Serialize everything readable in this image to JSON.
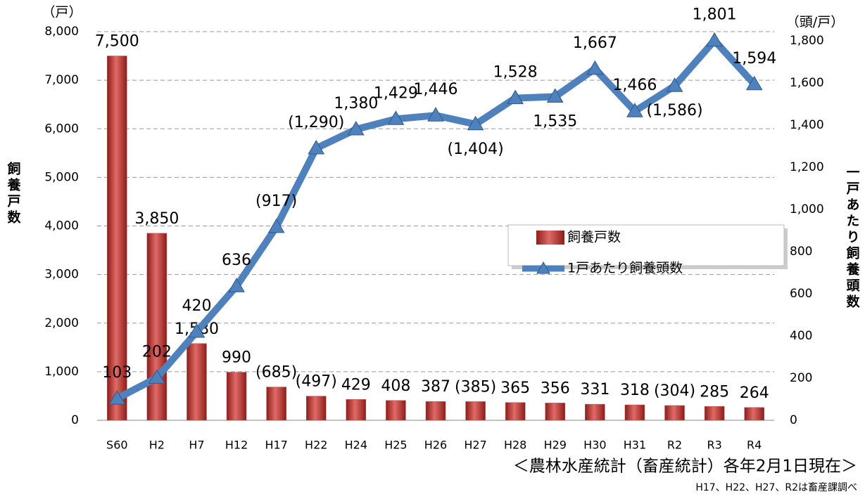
{
  "chart_data": {
    "type": "bar",
    "categories": [
      "S60",
      "H2",
      "H7",
      "H12",
      "H17",
      "H22",
      "H24",
      "H25",
      "H26",
      "H27",
      "H28",
      "H29",
      "H30",
      "H31",
      "R2",
      "R3",
      "R4"
    ],
    "series": [
      {
        "name": "飼養戸数",
        "type": "bar",
        "color": "#c0504d",
        "values": [
          7500,
          3850,
          1580,
          990,
          685,
          497,
          429,
          408,
          387,
          385,
          365,
          356,
          331,
          318,
          304,
          285,
          264
        ],
        "value_labels": [
          "7,500",
          "3,850",
          "1,580",
          "990",
          "(685)",
          "(497)",
          "429",
          "408",
          "387",
          "(385)",
          "365",
          "356",
          "331",
          "318",
          "(304)",
          "285",
          "264"
        ]
      },
      {
        "name": "1戸あたり飼養頭数",
        "type": "line",
        "axis": "y2",
        "color": "#4f81bd",
        "values": [
          103,
          202,
          420,
          636,
          917,
          1290,
          1380,
          1429,
          1446,
          1404,
          1528,
          1535,
          1667,
          1466,
          1586,
          1801,
          1594
        ],
        "value_labels": [
          "103",
          "202",
          "420",
          "636",
          "(917)",
          "(1,290)",
          "1,380",
          "1,429",
          "1,446",
          "(1,404)",
          "1,528",
          "1,535",
          "1,667",
          "1,466",
          "(1,586)",
          "1,801",
          "1,594"
        ]
      }
    ],
    "ylim": [
      0,
      8000
    ],
    "yticks": [
      0,
      {
        "value": 1000,
        "label": "1,000"
      },
      {
        "value": 2000,
        "label": "2,000"
      },
      {
        "value": 3000,
        "label": "3,000"
      },
      {
        "value": 4000,
        "label": "4,000"
      },
      {
        "value": 5000,
        "label": "5,000"
      },
      {
        "value": 6000,
        "label": "6,000"
      },
      {
        "value": 7000,
        "label": "7,000"
      },
      {
        "value": 8000,
        "label": "8,000"
      }
    ],
    "y2lim": [
      0,
      1800
    ],
    "y2ticks": [
      0,
      200,
      400,
      600,
      800,
      {
        "value": 1000,
        "label": "1,000"
      },
      {
        "value": 1200,
        "label": "1,200"
      },
      {
        "value": 1400,
        "label": "1,400"
      },
      {
        "value": 1600,
        "label": "1,600"
      },
      {
        "value": 1800,
        "label": "1,800"
      }
    ],
    "y_unit": "（戸）",
    "y2_unit": "（頭/戸）",
    "y_label": "飼養戸数",
    "y2_label": "一戸あたり飼養頭数",
    "grid": true,
    "legend": "right",
    "source": "＜農林水産統計（畜産統計）各年2月1日現在＞",
    "note": "H17、H22、H27、R2は畜産課調べ"
  }
}
